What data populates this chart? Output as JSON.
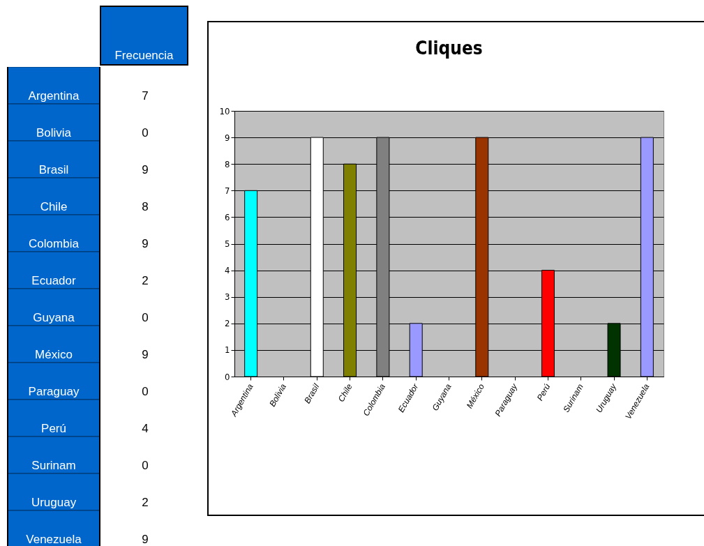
{
  "chart_data": [
    {
      "type": "other",
      "annotations": [
        "Frecuencia"
      ],
      "categories": [
        "Argentina",
        "Bolivia",
        "Brasil",
        "Chile",
        "Colombia",
        "Ecuador",
        "Guyana",
        "México",
        "Paraguay",
        "Perú",
        "Surinam",
        "Uruguay",
        "Venezuela"
      ],
      "values": [
        7,
        0,
        9,
        8,
        9,
        2,
        0,
        9,
        0,
        4,
        0,
        2,
        9
      ],
      "data_labels": true
    },
    {
      "type": "bar",
      "title": "Cliques",
      "categories": [
        "Argentina",
        "Bolivia",
        "Brasil",
        "Chile",
        "Colombia",
        "Ecuador",
        "Guyana",
        "México",
        "Paraguay",
        "Perú",
        "Surinam",
        "Uruguay",
        "Venezuela"
      ],
      "values": [
        7,
        0,
        9,
        8,
        9,
        2,
        0,
        9,
        0,
        4,
        0,
        2,
        9
      ],
      "colors": [
        "#00ffff",
        "#ff00ff",
        "#ffffff",
        "#808000",
        "#808080",
        "#9999ff",
        "#993366",
        "#993300",
        "#ffff99",
        "#ff0000",
        "#ccffff",
        "#003300",
        "#9999ff"
      ],
      "ylim": [
        0,
        10
      ],
      "yticks": [
        0,
        1,
        2,
        3,
        4,
        5,
        6,
        7,
        8,
        9,
        10
      ],
      "grid": "y"
    }
  ]
}
